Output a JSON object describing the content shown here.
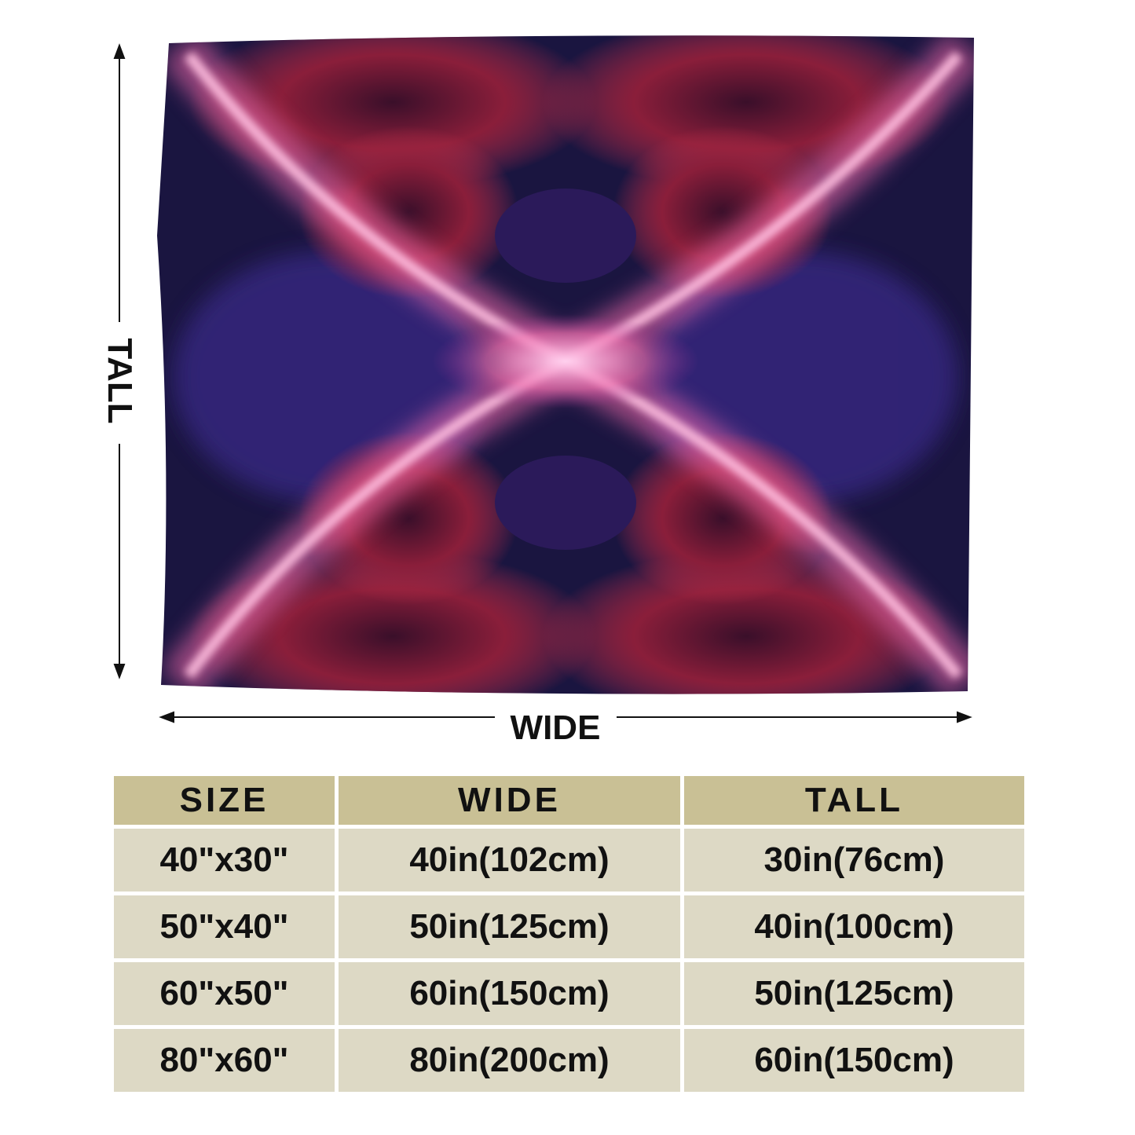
{
  "dimension_labels": {
    "tall": "TALL",
    "wide": "WIDE"
  },
  "table": {
    "header": [
      "SIZE",
      "WIDE",
      "TALL"
    ],
    "rows": [
      [
        "40\"x30\"",
        "40in(102cm)",
        "30in(76cm)"
      ],
      [
        "50\"x40\"",
        "50in(125cm)",
        "40in(100cm)"
      ],
      [
        "60\"x50\"",
        "60in(150cm)",
        "50in(125cm)"
      ],
      [
        "80\"x60\"",
        "80in(200cm)",
        "60in(150cm)"
      ]
    ]
  }
}
